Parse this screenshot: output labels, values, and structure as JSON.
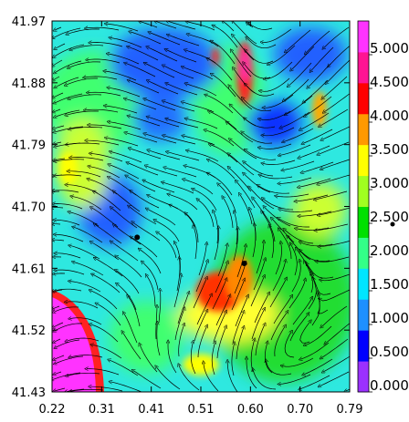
{
  "chart_data": {
    "type": "heatmap",
    "x_ticks": [
      "0.22",
      "0.31",
      "0.41",
      "0.51",
      "0.60",
      "0.70",
      "0.79"
    ],
    "y_ticks": [
      "41.97",
      "41.88",
      "41.79",
      "41.70",
      "41.61",
      "41.52",
      "41.43"
    ],
    "xlim": [
      0.22,
      0.79
    ],
    "ylim": [
      41.43,
      41.97
    ],
    "colorbar": {
      "labels": [
        "0.000",
        "0.500",
        "1.000",
        "1.500",
        "2.000",
        "2.500",
        "3.000",
        "3.500",
        "4.000",
        "4.500",
        "5.000"
      ],
      "colors": [
        "#9b30ff",
        "#0000ff",
        "#1e90ff",
        "#00e5ff",
        "#33ff88",
        "#00e000",
        "#a0ff20",
        "#ffff00",
        "#ff9900",
        "#ff0000",
        "#ff1493",
        "#ff33ff"
      ],
      "range": [
        0,
        5.5
      ]
    },
    "points": [
      {
        "x": 0.383,
        "y": 41.655
      },
      {
        "x": 0.588,
        "y": 41.617
      }
    ],
    "colorbar_marker": true
  }
}
